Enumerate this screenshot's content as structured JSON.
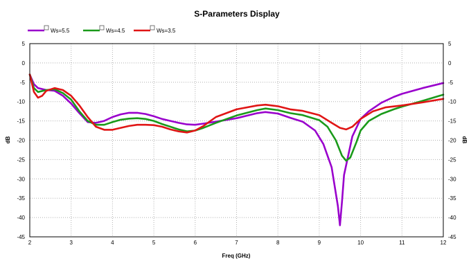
{
  "chart_data": {
    "type": "line",
    "title": "S-Parameters Display",
    "xlabel": "Freq (GHz)",
    "ylabel": "dB",
    "y2label": "dB",
    "xlim": [
      2,
      12
    ],
    "ylim": [
      -45,
      5
    ],
    "x_ticks": [
      2,
      3,
      4,
      5,
      6,
      7,
      8,
      9,
      10,
      11,
      12
    ],
    "y_ticks": [
      5,
      0,
      -5,
      -10,
      -15,
      -20,
      -25,
      -30,
      -35,
      -40,
      -45
    ],
    "grid": true,
    "legend_position": "top-left",
    "series": [
      {
        "name": "Ws=5.5",
        "color": "#9900cc",
        "x": [
          2.0,
          2.1,
          2.2,
          2.4,
          2.6,
          2.8,
          3.0,
          3.2,
          3.4,
          3.6,
          3.8,
          4.0,
          4.2,
          4.4,
          4.6,
          4.8,
          5.0,
          5.2,
          5.4,
          5.6,
          5.8,
          6.0,
          6.2,
          6.5,
          7.0,
          7.5,
          7.7,
          8.0,
          8.3,
          8.6,
          8.9,
          9.1,
          9.3,
          9.45,
          9.5,
          9.55,
          9.6,
          9.7,
          9.8,
          10.0,
          10.2,
          10.5,
          10.8,
          11.0,
          11.5,
          12.0
        ],
        "y": [
          -3,
          -5.5,
          -6.5,
          -7,
          -7.2,
          -8.5,
          -10.5,
          -13,
          -15.3,
          -15.5,
          -15,
          -14,
          -13.3,
          -12.9,
          -12.9,
          -13.2,
          -13.8,
          -14.5,
          -15,
          -15.5,
          -15.9,
          -16,
          -15.7,
          -15.2,
          -14.3,
          -13,
          -12.7,
          -13.1,
          -14.2,
          -15.2,
          -17.5,
          -21,
          -27,
          -37,
          -42,
          -36,
          -29,
          -24,
          -19,
          -14.5,
          -12.5,
          -10.3,
          -8.8,
          -8,
          -6.5,
          -5.2
        ]
      },
      {
        "name": "Ws=4.5",
        "color": "#1a9a1a",
        "x": [
          2.0,
          2.1,
          2.2,
          2.4,
          2.6,
          2.8,
          3.0,
          3.2,
          3.4,
          3.6,
          3.8,
          4.0,
          4.2,
          4.4,
          4.6,
          4.8,
          5.0,
          5.2,
          5.4,
          5.6,
          5.8,
          6.0,
          6.2,
          6.5,
          7.0,
          7.5,
          7.7,
          8.0,
          8.3,
          8.6,
          9.0,
          9.2,
          9.4,
          9.55,
          9.65,
          9.75,
          9.9,
          10.0,
          10.2,
          10.5,
          10.8,
          11.0,
          11.5,
          12.0
        ],
        "y": [
          -3,
          -6.5,
          -7.5,
          -7,
          -6.8,
          -7.8,
          -9.5,
          -12.5,
          -15,
          -16,
          -16,
          -15.3,
          -14.7,
          -14.4,
          -14.3,
          -14.5,
          -15,
          -15.8,
          -16.5,
          -17.2,
          -17.7,
          -17.5,
          -16.8,
          -15.5,
          -13.6,
          -12.2,
          -11.8,
          -12.2,
          -13,
          -13.5,
          -14.8,
          -16.5,
          -20,
          -24,
          -25.3,
          -24.5,
          -20.5,
          -17.5,
          -15,
          -13.2,
          -12,
          -11.3,
          -9.8,
          -8.2
        ]
      },
      {
        "name": "Ws=3.5",
        "color": "#e01515",
        "x": [
          2.0,
          2.1,
          2.2,
          2.3,
          2.4,
          2.6,
          2.8,
          3.0,
          3.2,
          3.4,
          3.6,
          3.8,
          4.0,
          4.2,
          4.4,
          4.6,
          4.8,
          5.0,
          5.2,
          5.4,
          5.6,
          5.8,
          6.0,
          6.2,
          6.5,
          7.0,
          7.5,
          7.7,
          8.0,
          8.3,
          8.6,
          9.0,
          9.3,
          9.5,
          9.65,
          9.8,
          10.0,
          10.3,
          10.6,
          11.0,
          11.5,
          12.0
        ],
        "y": [
          -3,
          -7.5,
          -9,
          -8.5,
          -7.2,
          -6.5,
          -7,
          -8.5,
          -11,
          -14,
          -16.5,
          -17.3,
          -17.3,
          -16.8,
          -16.3,
          -16,
          -16,
          -16.1,
          -16.5,
          -17.2,
          -17.7,
          -18,
          -17.5,
          -16.3,
          -14,
          -12,
          -11,
          -10.8,
          -11.2,
          -12,
          -12.4,
          -13.5,
          -15.5,
          -16.8,
          -17.2,
          -16.5,
          -14.5,
          -12.5,
          -11.5,
          -11,
          -10.2,
          -9.3
        ]
      }
    ]
  }
}
